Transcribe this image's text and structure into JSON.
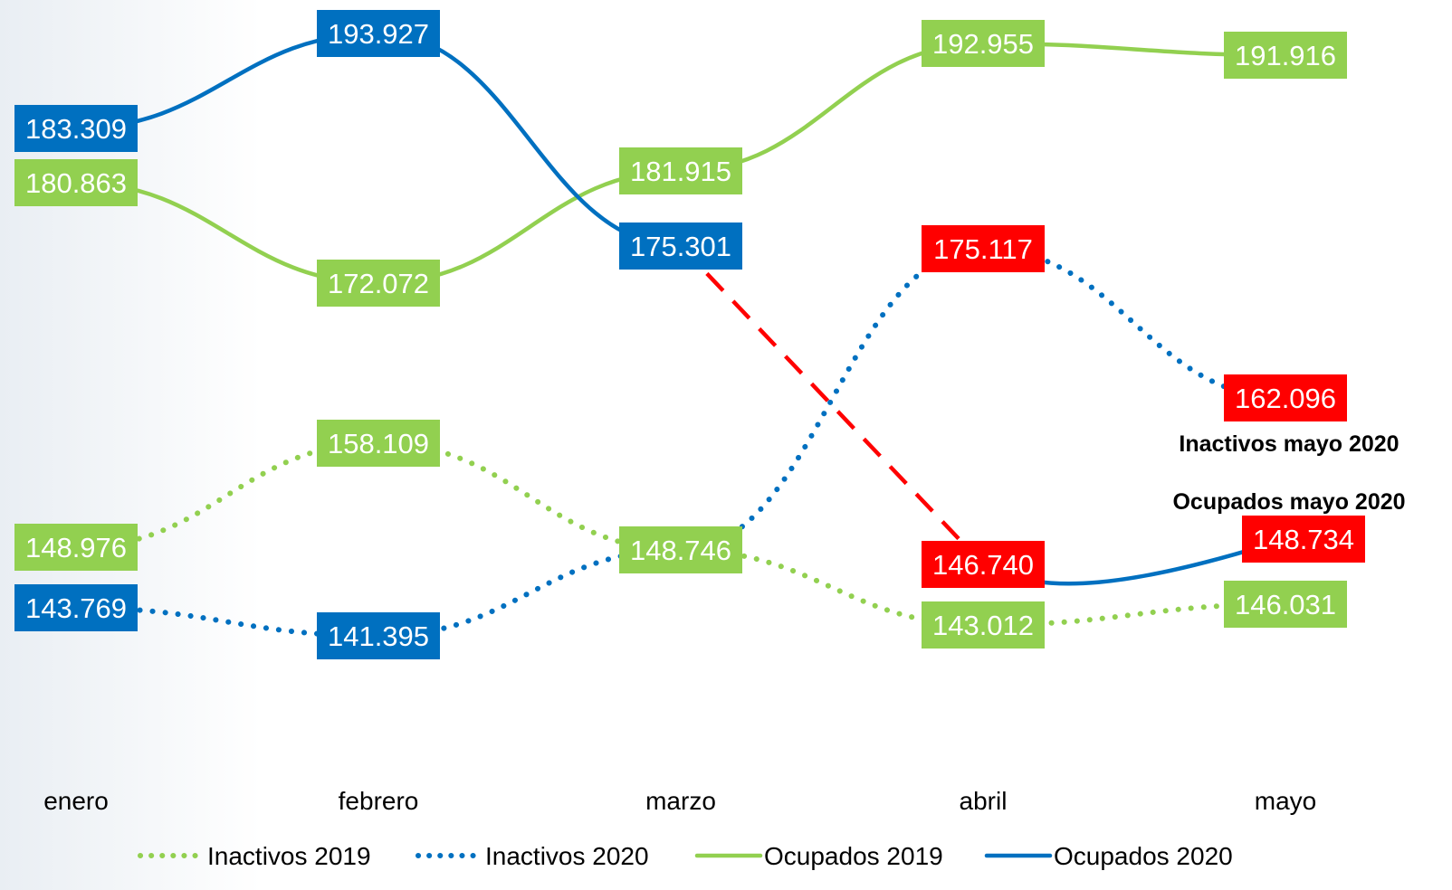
{
  "chart_data": {
    "type": "line",
    "categories": [
      "enero",
      "febrero",
      "marzo",
      "abril",
      "mayo"
    ],
    "series": [
      {
        "name": "Inactivos 2019",
        "style": "dotted",
        "color": "#92d050",
        "values": [
          148976,
          158109,
          148746,
          143012,
          146031
        ],
        "labels": [
          "148.976",
          "158.109",
          "148.746",
          "143.012",
          "146.031"
        ]
      },
      {
        "name": "Inactivos 2020",
        "style": "dotted",
        "color": "#0070c0",
        "values": [
          143769,
          141395,
          148746,
          175117,
          162096
        ],
        "labels": [
          "143.769",
          "141.395",
          "",
          "175.117",
          "162.096"
        ]
      },
      {
        "name": "Ocupados 2019",
        "style": "solid",
        "color": "#92d050",
        "values": [
          180863,
          172072,
          181915,
          192955,
          191916
        ],
        "labels": [
          "180.863",
          "172.072",
          "181.915",
          "192.955",
          "191.916"
        ]
      },
      {
        "name": "Ocupados 2020",
        "style": "solid",
        "color": "#0070c0",
        "values": [
          183309,
          193927,
          175301,
          146740,
          148734
        ],
        "labels": [
          "183.309",
          "193.927",
          "175.301",
          "146.740",
          "148.734"
        ]
      }
    ],
    "annotations": [
      "Inactivos mayo 2020",
      "Ocupados mayo 2020"
    ],
    "legend": "bottom",
    "grid": false,
    "highlight_color": "#ff0000"
  }
}
